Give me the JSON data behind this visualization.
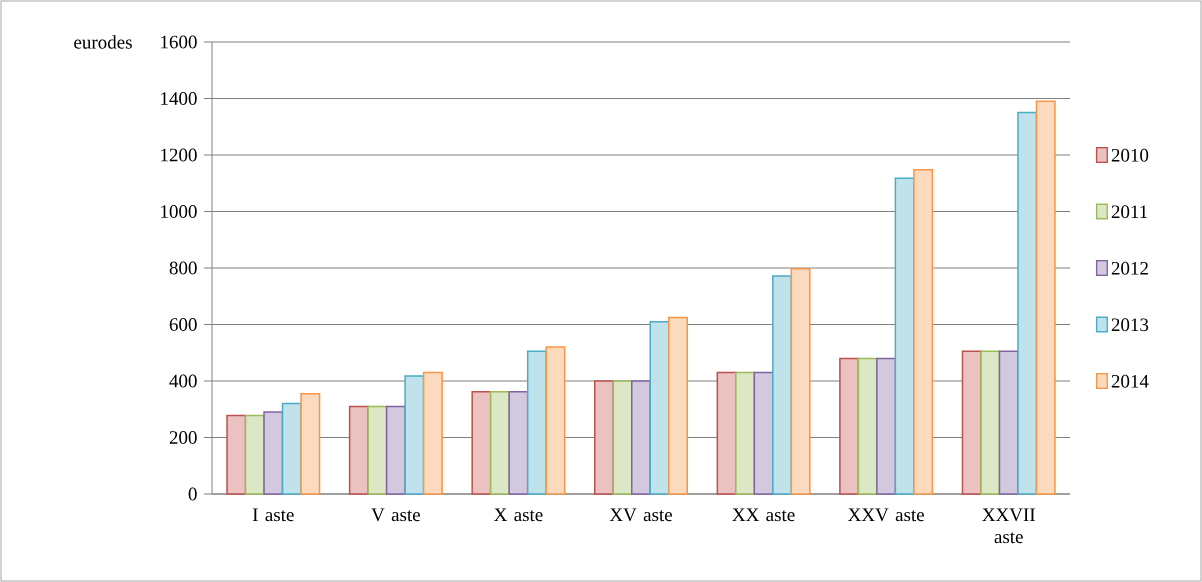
{
  "chart_data": {
    "type": "bar",
    "ylabel": "eurodes",
    "categories": [
      "I aste",
      "V aste",
      "X aste",
      "XV aste",
      "XX aste",
      "XXV aste",
      "XXVII aste"
    ],
    "series": [
      {
        "name": "2010",
        "color": "#c0504d",
        "values": [
          278,
          310,
          362,
          400,
          430,
          480,
          505
        ]
      },
      {
        "name": "2011",
        "color": "#9bbb59",
        "values": [
          278,
          310,
          362,
          400,
          430,
          480,
          505
        ]
      },
      {
        "name": "2012",
        "color": "#8064a2",
        "values": [
          290,
          310,
          362,
          400,
          430,
          480,
          505
        ]
      },
      {
        "name": "2013",
        "color": "#4bacc6",
        "values": [
          320,
          418,
          505,
          610,
          772,
          1118,
          1350
        ]
      },
      {
        "name": "2014",
        "color": "#f79646",
        "values": [
          355,
          430,
          520,
          625,
          797,
          1148,
          1390
        ]
      }
    ],
    "ylim": [
      0,
      1600
    ],
    "yticks": [
      0,
      200,
      400,
      600,
      800,
      1000,
      1200,
      1400,
      1600
    ],
    "grid": "y",
    "legend": "right"
  }
}
